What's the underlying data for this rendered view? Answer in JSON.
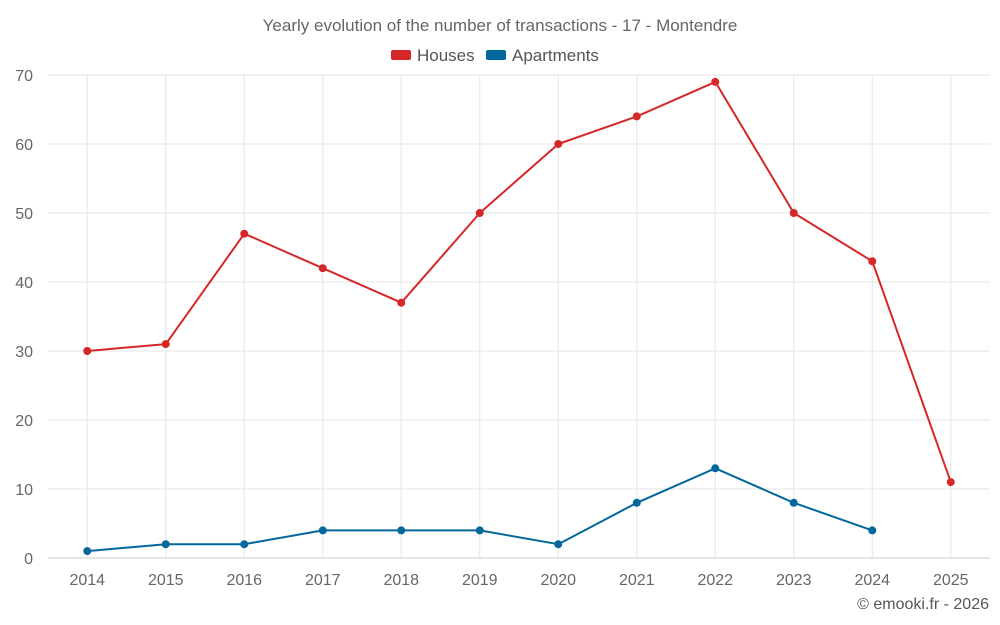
{
  "chart_data": {
    "type": "line",
    "title": "Yearly evolution of the number of transactions - 17 - Montendre",
    "categories": [
      "2014",
      "2015",
      "2016",
      "2017",
      "2018",
      "2019",
      "2020",
      "2021",
      "2022",
      "2023",
      "2024",
      "2025"
    ],
    "series": [
      {
        "name": "Houses",
        "color": "#d62728",
        "values": [
          30,
          31,
          47,
          42,
          37,
          50,
          60,
          64,
          69,
          50,
          43,
          11
        ]
      },
      {
        "name": "Apartments",
        "color": "#04679b",
        "values": [
          1,
          2,
          2,
          4,
          4,
          4,
          2,
          8,
          13,
          8,
          4,
          null
        ]
      }
    ],
    "ylim": [
      0,
      70
    ],
    "yticks": [
      0,
      10,
      20,
      30,
      40,
      50,
      60,
      70
    ],
    "xlabel": "",
    "ylabel": "",
    "grid": true,
    "legend_position": "top-center"
  },
  "credit": "© emooki.fr - 2026"
}
